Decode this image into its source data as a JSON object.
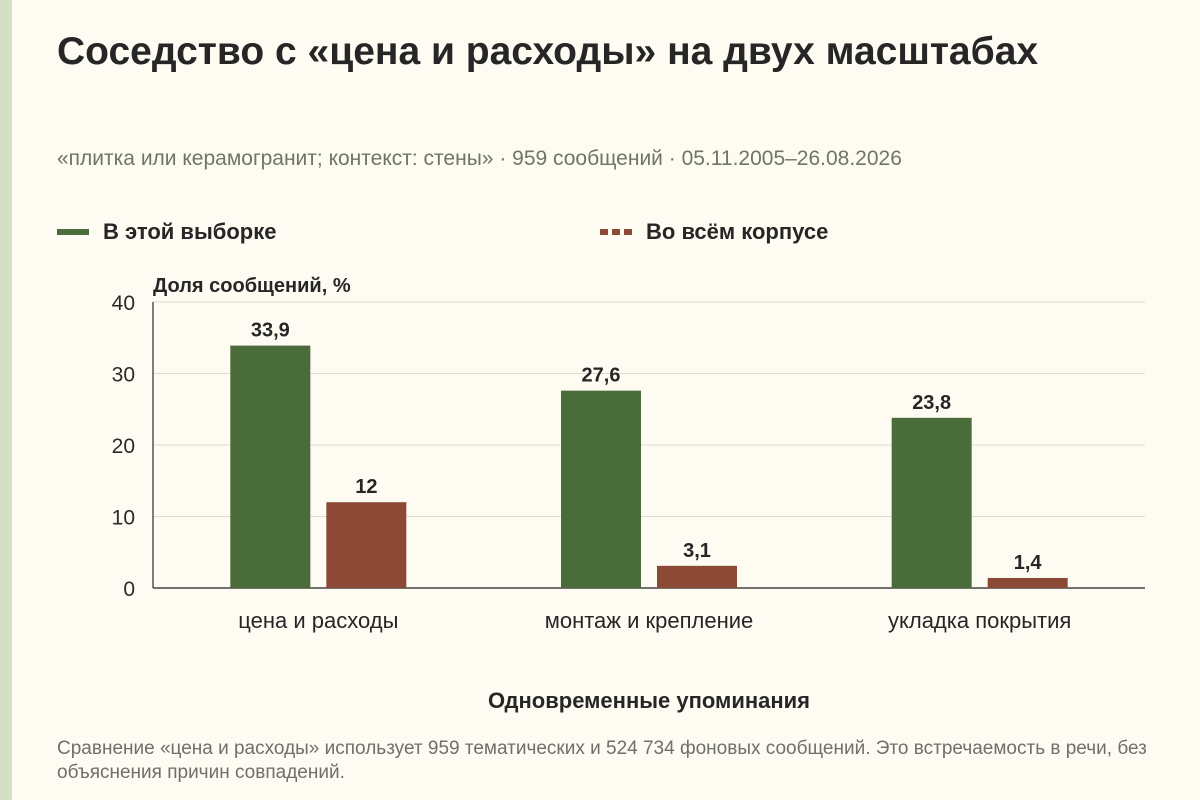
{
  "header": {
    "title": "Соседство с «цена и расходы» на двух масштабах",
    "subtitle": "«плитка или керамогранит; контекст: стены» · 959 сообщений · 05.11.2005–26.08.2026"
  },
  "legend": [
    {
      "label": "В этой выборке",
      "color": "#4a6b3a",
      "style": "solid"
    },
    {
      "label": "Во всём корпусе",
      "color": "#8c4a36",
      "style": "dashed"
    }
  ],
  "footnote": "Сравнение «цена и расходы» использует 959 тематических и 524 734 фоновых сообщений. Это встречаемость в речи, без объяснения причин совпадений.",
  "chart_data": {
    "type": "bar",
    "title": "Соседство с «цена и расходы» на двух масштабах",
    "xlabel": "Одновременные упоминания",
    "ylabel": "Доля сообщений, %",
    "ylim": [
      0,
      40
    ],
    "yticks": [
      0,
      10,
      20,
      30,
      40
    ],
    "grid": true,
    "legend_position": "top",
    "categories": [
      "цена и расходы",
      "монтаж и крепление",
      "укладка покрытия"
    ],
    "series": [
      {
        "name": "В этой выборке",
        "values": [
          33.9,
          27.6,
          23.8
        ],
        "labels": [
          "33,9",
          "27,6",
          "23,8"
        ],
        "color": "#4a6b3a"
      },
      {
        "name": "Во всём корпусе",
        "values": [
          12,
          3.1,
          1.4
        ],
        "labels": [
          "12",
          "3,1",
          "1,4"
        ],
        "color": "#8c4a36"
      }
    ]
  }
}
